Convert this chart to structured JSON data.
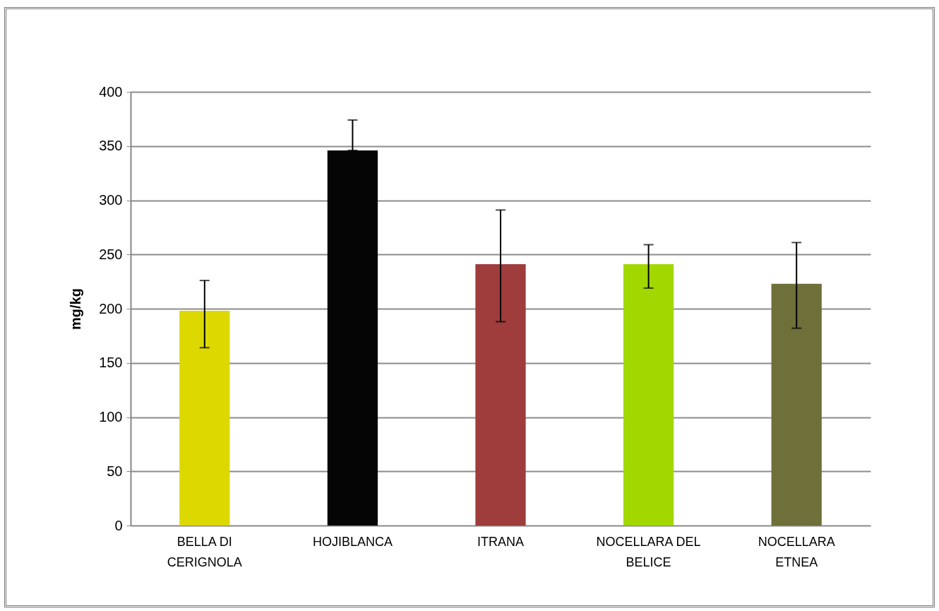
{
  "chart_data": {
    "type": "bar",
    "ylabel": "mg/kg",
    "categories": [
      "BELLA DI CERIGNOLA",
      "HOJIBLANCA",
      "ITRANA",
      "NOCELLARA DEL BELICE",
      "NOCELLARA ETNEA"
    ],
    "values": [
      198,
      346,
      241,
      241,
      223
    ],
    "colors": [
      "#dcd800",
      "#050505",
      "#9e3d3b",
      "#a2d800",
      "#6f6f3a"
    ],
    "errors": [
      [
        164,
        226
      ],
      [
        346,
        374
      ],
      [
        188,
        291
      ],
      [
        219,
        259
      ],
      [
        182,
        261
      ]
    ],
    "ylim": [
      0,
      400
    ],
    "yticks": [
      0,
      50,
      100,
      150,
      200,
      250,
      300,
      350,
      400
    ],
    "grid": "y"
  }
}
